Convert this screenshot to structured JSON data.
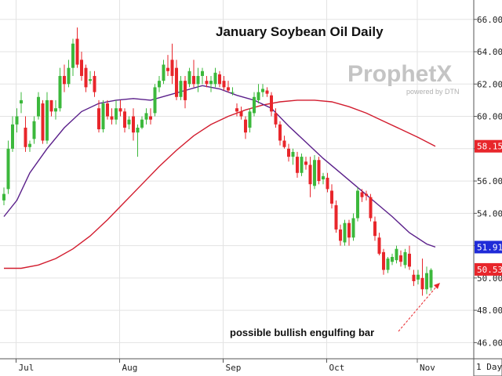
{
  "colors": {
    "up": "#3cb83c",
    "down": "#e8262b",
    "ma_short": "#5a1f8a",
    "ma_long": "#d21c2e",
    "grid": "#e3e3e3",
    "axis": "#555555",
    "badge_blue": "#1f2bd8",
    "badge_red": "#e8262b"
  },
  "chart_data": {
    "type": "candlestick",
    "title": "January Soybean Oil Daily",
    "annotation": "possible bullish engulfing bar",
    "ylim": [
      45.0,
      67.2
    ],
    "y_ticks": [
      "46.00",
      "48.00",
      "50.00",
      "52.00",
      "54.00",
      "56.00",
      "58.00",
      "60.00",
      "62.00",
      "64.00",
      "66.00"
    ],
    "x_ticks": [
      "Jul",
      "Aug",
      "Sep",
      "Oct",
      "Nov"
    ],
    "x_tick_index": [
      1,
      25,
      49,
      73,
      94
    ],
    "last_values": [
      {
        "label": "58.15",
        "value": 58.15,
        "color": "badge_red"
      },
      {
        "label": "51.91",
        "value": 51.91,
        "color": "badge_blue"
      },
      {
        "label": "50.53",
        "value": 50.53,
        "color": "badge_red"
      }
    ],
    "candles": [
      [
        54.8,
        55.6,
        54.5,
        55.2
      ],
      [
        55.5,
        58.5,
        55.2,
        58.0
      ],
      [
        58.0,
        60.0,
        57.8,
        59.5
      ],
      [
        59.5,
        60.5,
        59.0,
        60.0
      ],
      [
        60.8,
        61.5,
        60.2,
        61.0
      ],
      [
        59.3,
        60.0,
        57.8,
        58.1
      ],
      [
        58.1,
        58.5,
        57.8,
        58.3
      ],
      [
        58.6,
        60.0,
        58.3,
        59.7
      ],
      [
        60.0,
        61.5,
        59.8,
        61.2
      ],
      [
        60.8,
        61.0,
        58.3,
        58.5
      ],
      [
        58.5,
        61.5,
        58.3,
        61.0
      ],
      [
        61.0,
        61.0,
        60.0,
        60.3
      ],
      [
        60.3,
        61.0,
        59.8,
        60.5
      ],
      [
        60.5,
        63.0,
        60.3,
        62.5
      ],
      [
        62.5,
        63.2,
        61.5,
        62.0
      ],
      [
        62.0,
        63.5,
        61.8,
        63.0
      ],
      [
        63.0,
        64.8,
        62.5,
        64.5
      ],
      [
        64.8,
        65.5,
        63.0,
        63.2
      ],
      [
        63.5,
        64.0,
        62.2,
        62.5
      ],
      [
        63.0,
        63.2,
        61.5,
        61.8
      ],
      [
        62.2,
        62.8,
        62.0,
        62.3
      ],
      [
        62.5,
        62.8,
        61.2,
        61.5
      ],
      [
        60.5,
        61.0,
        59.0,
        59.2
      ],
      [
        59.2,
        61.0,
        59.0,
        60.8
      ],
      [
        60.8,
        61.0,
        59.8,
        60.0
      ],
      [
        60.0,
        60.5,
        59.5,
        59.8
      ],
      [
        59.8,
        61.0,
        59.5,
        60.5
      ],
      [
        60.5,
        61.0,
        60.0,
        60.3
      ],
      [
        60.3,
        60.5,
        59.0,
        59.3
      ],
      [
        59.5,
        60.0,
        59.2,
        59.8
      ],
      [
        60.0,
        60.5,
        58.5,
        59.0
      ],
      [
        59.0,
        59.5,
        57.5,
        59.3
      ],
      [
        59.3,
        60.0,
        59.2,
        59.8
      ],
      [
        59.8,
        60.5,
        59.5,
        60.2
      ],
      [
        60.0,
        60.5,
        59.5,
        59.8
      ],
      [
        60.2,
        62.0,
        60.0,
        61.8
      ],
      [
        61.8,
        62.5,
        61.5,
        62.2
      ],
      [
        62.2,
        63.5,
        62.0,
        63.2
      ],
      [
        63.0,
        63.8,
        62.5,
        62.8
      ],
      [
        63.5,
        64.5,
        62.0,
        62.5
      ],
      [
        63.0,
        63.5,
        61.0,
        61.2
      ],
      [
        61.2,
        62.5,
        61.0,
        62.2
      ],
      [
        62.2,
        62.5,
        60.5,
        61.0
      ],
      [
        62.0,
        63.0,
        61.8,
        62.8
      ],
      [
        62.5,
        63.5,
        61.8,
        62.0
      ],
      [
        62.0,
        63.0,
        61.5,
        62.5
      ],
      [
        62.5,
        63.0,
        62.0,
        62.8
      ],
      [
        62.2,
        62.5,
        61.8,
        62.0
      ],
      [
        62.0,
        62.5,
        61.5,
        62.2
      ],
      [
        62.0,
        63.0,
        61.8,
        62.7
      ],
      [
        62.6,
        62.8,
        61.8,
        62.0
      ],
      [
        62.2,
        62.5,
        61.6,
        61.8
      ],
      [
        61.8,
        62.2,
        61.5,
        61.6
      ],
      [
        61.5,
        61.8,
        61.3,
        61.5
      ],
      [
        60.5,
        60.8,
        60.0,
        60.3
      ],
      [
        60.3,
        60.6,
        59.8,
        60.0
      ],
      [
        59.8,
        60.0,
        58.6,
        59.0
      ],
      [
        59.3,
        60.5,
        59.0,
        60.3
      ],
      [
        60.2,
        61.5,
        60.0,
        61.2
      ],
      [
        61.0,
        62.0,
        60.8,
        61.5
      ],
      [
        61.5,
        62.0,
        61.2,
        61.7
      ],
      [
        61.6,
        61.8,
        61.2,
        61.4
      ],
      [
        61.3,
        61.5,
        60.0,
        60.3
      ],
      [
        60.2,
        60.5,
        59.3,
        59.5
      ],
      [
        59.5,
        59.7,
        58.2,
        58.5
      ],
      [
        58.5,
        58.8,
        58.0,
        58.1
      ],
      [
        58.0,
        58.3,
        57.2,
        57.5
      ],
      [
        57.5,
        58.0,
        57.0,
        57.8
      ],
      [
        57.5,
        57.8,
        56.2,
        56.5
      ],
      [
        56.5,
        57.7,
        56.3,
        57.5
      ],
      [
        57.2,
        57.5,
        56.7,
        57.0
      ],
      [
        57.0,
        57.5,
        55.0,
        55.8
      ],
      [
        55.7,
        57.6,
        55.5,
        57.3
      ],
      [
        57.3,
        57.5,
        55.8,
        56.0
      ],
      [
        56.1,
        56.5,
        55.8,
        56.3
      ],
      [
        56.2,
        56.5,
        55.3,
        55.5
      ],
      [
        55.4,
        55.8,
        54.3,
        54.6
      ],
      [
        54.5,
        54.8,
        52.8,
        53.0
      ],
      [
        53.0,
        53.3,
        52.0,
        52.3
      ],
      [
        52.2,
        53.6,
        52.0,
        53.4
      ],
      [
        53.4,
        53.6,
        52.0,
        52.5
      ],
      [
        52.5,
        54.0,
        52.3,
        53.7
      ],
      [
        53.7,
        55.6,
        53.5,
        55.4
      ],
      [
        55.3,
        55.5,
        54.7,
        55.0
      ],
      [
        55.2,
        55.4,
        54.8,
        55.1
      ],
      [
        55.0,
        55.2,
        53.5,
        53.7
      ],
      [
        53.5,
        53.8,
        52.3,
        52.6
      ],
      [
        52.5,
        52.8,
        51.4,
        51.5
      ],
      [
        51.6,
        51.8,
        50.2,
        50.5
      ],
      [
        50.5,
        51.3,
        50.3,
        51.2
      ],
      [
        51.0,
        51.5,
        50.8,
        51.3
      ],
      [
        51.1,
        52.0,
        50.9,
        51.8
      ],
      [
        51.4,
        51.7,
        50.7,
        51.0
      ],
      [
        50.8,
        51.8,
        50.6,
        51.6
      ],
      [
        51.5,
        52.0,
        50.5,
        50.7
      ],
      [
        50.2,
        50.5,
        49.5,
        49.8
      ],
      [
        49.9,
        50.5,
        49.6,
        50.2
      ],
      [
        50.0,
        51.2,
        48.9,
        49.3
      ],
      [
        49.3,
        50.7,
        49.0,
        50.3
      ],
      [
        49.4,
        50.6,
        49.2,
        50.5
      ]
    ],
    "ma_short": [
      [
        0,
        53.8
      ],
      [
        3,
        54.8
      ],
      [
        6,
        56.5
      ],
      [
        10,
        58.0
      ],
      [
        14,
        59.3
      ],
      [
        18,
        60.3
      ],
      [
        22,
        60.8
      ],
      [
        26,
        61.0
      ],
      [
        30,
        61.1
      ],
      [
        34,
        61.0
      ],
      [
        38,
        61.3
      ],
      [
        42,
        61.6
      ],
      [
        46,
        61.9
      ],
      [
        50,
        61.7
      ],
      [
        54,
        61.3
      ],
      [
        58,
        61.0
      ],
      [
        62,
        60.5
      ],
      [
        66,
        59.4
      ],
      [
        70,
        58.4
      ],
      [
        74,
        57.4
      ],
      [
        78,
        56.5
      ],
      [
        82,
        55.6
      ],
      [
        86,
        54.7
      ],
      [
        90,
        53.8
      ],
      [
        94,
        52.8
      ],
      [
        98,
        52.1
      ],
      [
        100,
        51.91
      ]
    ],
    "ma_long": [
      [
        0,
        50.6
      ],
      [
        4,
        50.6
      ],
      [
        8,
        50.8
      ],
      [
        12,
        51.2
      ],
      [
        16,
        51.8
      ],
      [
        20,
        52.6
      ],
      [
        24,
        53.6
      ],
      [
        28,
        54.7
      ],
      [
        32,
        55.8
      ],
      [
        36,
        56.9
      ],
      [
        40,
        57.9
      ],
      [
        44,
        58.8
      ],
      [
        48,
        59.5
      ],
      [
        52,
        60.0
      ],
      [
        56,
        60.4
      ],
      [
        60,
        60.7
      ],
      [
        64,
        60.9
      ],
      [
        68,
        61.0
      ],
      [
        72,
        61.0
      ],
      [
        76,
        60.9
      ],
      [
        80,
        60.6
      ],
      [
        84,
        60.2
      ],
      [
        88,
        59.7
      ],
      [
        92,
        59.2
      ],
      [
        96,
        58.7
      ],
      [
        100,
        58.15
      ]
    ]
  },
  "branding": {
    "logo_main": "ProphetX",
    "logo_sub": "powered by DTN",
    "interval_label": "1 Day"
  }
}
